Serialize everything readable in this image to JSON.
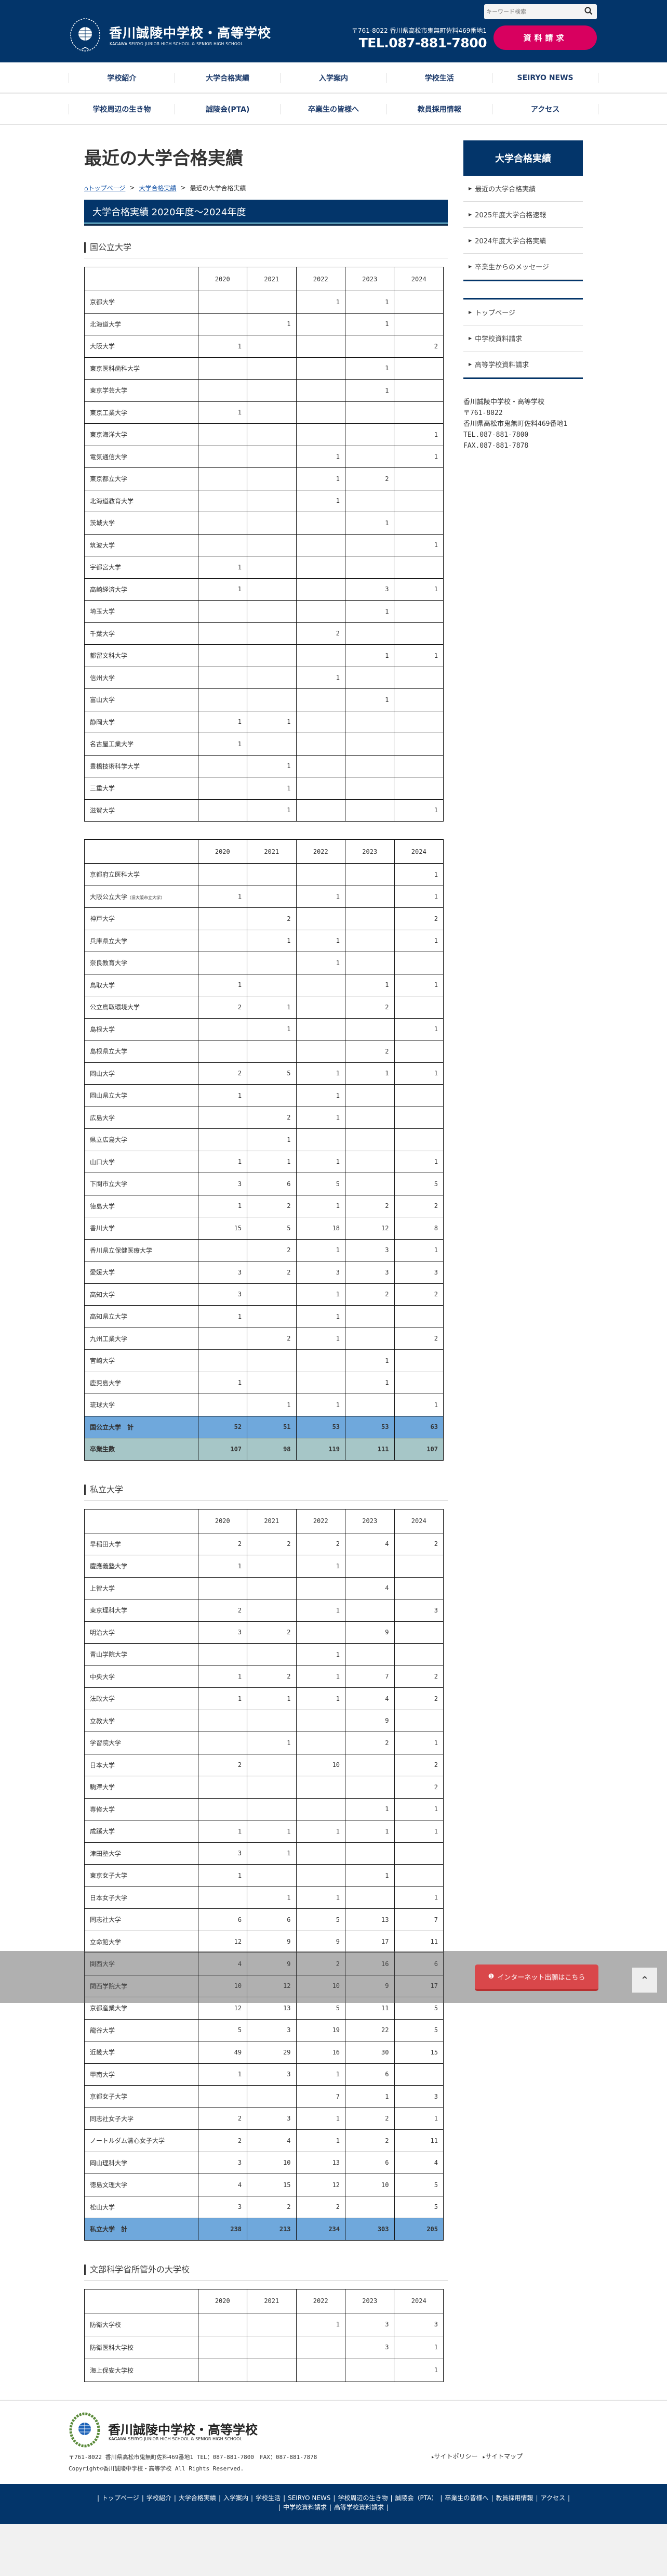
{
  "header": {
    "school_name": "香川誠陵中学校・高等学校",
    "school_name_en": "KAGAWA SEIRYO JUNIOR HIGH SCHOOL & SENIOR HIGH SCHOOL",
    "search_placeholder": "キーワード検索",
    "address": "〒761-8022 香川県高松市鬼無町佐料469番地1",
    "tel": "TEL.087-881-7800",
    "request_button": "資料請求"
  },
  "nav": {
    "row1": [
      "学校紹介",
      "大学合格実績",
      "入学案内",
      "学校生活",
      "SEIRYO NEWS"
    ],
    "row2": [
      "学校周辺の生き物",
      "誠陵会(PTA)",
      "卒業生の皆様へ",
      "教員採用情報",
      "アクセス"
    ]
  },
  "main": {
    "title": "最近の大学合格実績",
    "breadcrumb": {
      "home": "トップページ",
      "parent": "大学合格実績",
      "current": "最近の大学合格実績",
      "sep": ">"
    },
    "banner": "大学合格実績 2020年度〜2024年度",
    "sections": {
      "national": "国公立大学",
      "private": "私立大学",
      "other": "文部科学省所管外の大学校"
    }
  },
  "columns": [
    "2020",
    "2021",
    "2022",
    "2023",
    "2024"
  ],
  "tables": [
    {
      "rows": [
        [
          "京都大学",
          "",
          "",
          "1",
          "1",
          ""
        ],
        [
          "北海道大学",
          "",
          "1",
          "",
          "1",
          ""
        ],
        [
          "大阪大学",
          "1",
          "",
          "",
          "",
          "2"
        ],
        [
          "東京医科歯科大学",
          "",
          "",
          "",
          "1",
          ""
        ],
        [
          "東京学芸大学",
          "",
          "",
          "",
          "1",
          ""
        ],
        [
          "東京工業大学",
          "1",
          "",
          "",
          "",
          ""
        ],
        [
          "東京海洋大学",
          "",
          "",
          "",
          "",
          "1"
        ],
        [
          "電気通信大学",
          "",
          "",
          "1",
          "",
          "1"
        ],
        [
          "東京都立大学",
          "",
          "",
          "1",
          "2",
          ""
        ],
        [
          "北海道教育大学",
          "",
          "",
          "1",
          "",
          ""
        ],
        [
          "茨城大学",
          "",
          "",
          "",
          "1",
          ""
        ],
        [
          "筑波大学",
          "",
          "",
          "",
          "",
          "1"
        ],
        [
          "宇都宮大学",
          "1",
          "",
          "",
          "",
          ""
        ],
        [
          "高崎経済大学",
          "1",
          "",
          "",
          "3",
          "1"
        ],
        [
          "埼玉大学",
          "",
          "",
          "",
          "1",
          ""
        ],
        [
          "千葉大学",
          "",
          "",
          "2",
          "",
          ""
        ],
        [
          "都留文科大学",
          "",
          "",
          "",
          "1",
          "1"
        ],
        [
          "信州大学",
          "",
          "",
          "1",
          "",
          ""
        ],
        [
          "富山大学",
          "",
          "",
          "",
          "1",
          ""
        ],
        [
          "静岡大学",
          "1",
          "1",
          "",
          "",
          ""
        ],
        [
          "名古屋工業大学",
          "1",
          "",
          "",
          "",
          ""
        ],
        [
          "豊橋技術科学大学",
          "",
          "1",
          "",
          "",
          ""
        ],
        [
          "三重大学",
          "",
          "1",
          "",
          "",
          ""
        ],
        [
          "滋賀大学",
          "",
          "1",
          "",
          "",
          "1"
        ]
      ]
    },
    {
      "rows": [
        [
          "京都府立医科大学",
          "",
          "",
          "",
          "",
          "1"
        ],
        [
          "大阪公立大学|（旧大阪市立大学）",
          "1",
          "",
          "1",
          "",
          "1"
        ],
        [
          "神戸大学",
          "",
          "2",
          "",
          "",
          "2"
        ],
        [
          "兵庫県立大学",
          "",
          "1",
          "1",
          "",
          "1"
        ],
        [
          "奈良教育大学",
          "",
          "",
          "1",
          "",
          ""
        ],
        [
          "鳥取大学",
          "1",
          "",
          "",
          "1",
          "1"
        ],
        [
          "公立鳥取環境大学",
          "2",
          "1",
          "",
          "2",
          ""
        ],
        [
          "島根大学",
          "",
          "1",
          "",
          "",
          "1"
        ],
        [
          "島根県立大学",
          "",
          "",
          "",
          "2",
          ""
        ],
        [
          "岡山大学",
          "2",
          "5",
          "1",
          "1",
          "1"
        ],
        [
          "岡山県立大学",
          "1",
          "",
          "1",
          "",
          ""
        ],
        [
          "広島大学",
          "",
          "2",
          "1",
          "",
          ""
        ],
        [
          "県立広島大学",
          "",
          "1",
          "",
          "",
          ""
        ],
        [
          "山口大学",
          "1",
          "1",
          "1",
          "",
          "1"
        ],
        [
          "下関市立大学",
          "3",
          "6",
          "5",
          "",
          "5"
        ],
        [
          "徳島大学",
          "1",
          "2",
          "1",
          "2",
          "2"
        ],
        [
          "香川大学",
          "15",
          "5",
          "18",
          "12",
          "8"
        ],
        [
          "香川県立保健医療大学",
          "",
          "2",
          "1",
          "3",
          "1"
        ],
        [
          "愛媛大学",
          "3",
          "2",
          "3",
          "3",
          "3"
        ],
        [
          "高知大学",
          "3",
          "",
          "1",
          "2",
          "2"
        ],
        [
          "高知県立大学",
          "1",
          "",
          "1",
          "",
          ""
        ],
        [
          "九州工業大学",
          "",
          "2",
          "1",
          "",
          "2"
        ],
        [
          "宮崎大学",
          "",
          "",
          "",
          "1",
          ""
        ],
        [
          "鹿児島大学",
          "1",
          "",
          "",
          "1",
          ""
        ],
        [
          "琉球大学",
          "",
          "1",
          "1",
          "",
          "1"
        ]
      ],
      "total": [
        "国公立大学　計",
        "52",
        "51",
        "53",
        "53",
        "63"
      ],
      "graduates": [
        "卒業生数",
        "107",
        "98",
        "119",
        "111",
        "107"
      ]
    },
    {
      "rows": [
        [
          "早稲田大学",
          "2",
          "2",
          "2",
          "4",
          "2"
        ],
        [
          "慶應義塾大学",
          "1",
          "",
          "1",
          "",
          ""
        ],
        [
          "上智大学",
          "",
          "",
          "",
          "4",
          ""
        ],
        [
          "東京理科大学",
          "2",
          "",
          "1",
          "",
          "3"
        ],
        [
          "明治大学",
          "3",
          "2",
          "",
          "9",
          ""
        ],
        [
          "青山学院大学",
          "",
          "",
          "1",
          "",
          ""
        ],
        [
          "中央大学",
          "1",
          "2",
          "1",
          "7",
          "2"
        ],
        [
          "法政大学",
          "1",
          "1",
          "1",
          "4",
          "2"
        ],
        [
          "立教大学",
          "",
          "",
          "",
          "9",
          ""
        ],
        [
          "学習院大学",
          "",
          "1",
          "",
          "2",
          "1"
        ],
        [
          "日本大学",
          "2",
          "",
          "10",
          "",
          "2"
        ],
        [
          "駒澤大学",
          "",
          "",
          "",
          "",
          "2"
        ],
        [
          "専修大学",
          "",
          "",
          "",
          "1",
          "1"
        ],
        [
          "成蹊大学",
          "1",
          "1",
          "1",
          "1",
          "1"
        ],
        [
          "津田塾大学",
          "3",
          "1",
          "",
          "",
          ""
        ],
        [
          "東京女子大学",
          "1",
          "",
          "",
          "1",
          ""
        ],
        [
          "日本女子大学",
          "",
          "1",
          "1",
          "",
          "1"
        ],
        [
          "同志社大学",
          "6",
          "6",
          "5",
          "13",
          "7"
        ],
        [
          "立命館大学",
          "12",
          "9",
          "9",
          "17",
          "11"
        ],
        [
          "関西大学",
          "4",
          "9",
          "2",
          "16",
          "6"
        ],
        [
          "関西学院大学",
          "10",
          "12",
          "10",
          "9",
          "17"
        ],
        [
          "京都産業大学",
          "12",
          "13",
          "5",
          "11",
          "5"
        ],
        [
          "龍谷大学",
          "5",
          "3",
          "19",
          "22",
          "5"
        ],
        [
          "近畿大学",
          "49",
          "29",
          "16",
          "30",
          "15"
        ],
        [
          "甲南大学",
          "1",
          "3",
          "1",
          "6",
          ""
        ],
        [
          "京都女子大学",
          "",
          "",
          "7",
          "1",
          "3"
        ],
        [
          "同志社女子大学",
          "2",
          "3",
          "1",
          "2",
          "1"
        ],
        [
          "ノートルダム清心女子大学",
          "2",
          "4",
          "1",
          "2",
          "11"
        ],
        [
          "岡山理科大学",
          "3",
          "10",
          "13",
          "6",
          "4"
        ],
        [
          "徳島文理大学",
          "4",
          "15",
          "12",
          "10",
          "5"
        ],
        [
          "松山大学",
          "3",
          "2",
          "2",
          "",
          "5"
        ]
      ],
      "total": [
        "私立大学　計",
        "238",
        "213",
        "234",
        "303",
        "205"
      ]
    },
    {
      "rows": [
        [
          "防衛大学校",
          "",
          "",
          "1",
          "3",
          "3"
        ],
        [
          "防衛医科大学校",
          "",
          "",
          "",
          "3",
          "1"
        ],
        [
          "海上保安大学校",
          "",
          "",
          "",
          "",
          "1"
        ]
      ]
    }
  ],
  "sidebar": {
    "heading": "大学合格実績",
    "menu": [
      "最近の大学合格実績",
      "2025年度大学合格速報",
      "2024年度大学合格実績",
      "卒業生からのメッセージ"
    ],
    "links": [
      "トップページ",
      "中学校資料請求",
      "高等学校資料請求"
    ],
    "address": [
      "香川誠陵中学校・高等学校",
      "〒761-8022",
      "香川県高松市鬼無町佐料469番地1",
      "TEL.087-881-7800",
      "FAX.087-881-7878"
    ]
  },
  "floating": {
    "net_apply": "インターネット出願はこちら"
  },
  "footer": {
    "school_name": "香川誠陵中学校・高等学校",
    "school_name_en": "KAGAWA SEIRYO JUNIOR HIGH SCHOOL & SENIOR HIGH SCHOOL",
    "address": "〒761-8022 香川県高松市鬼無町佐料469番地1 TEL：087-881-7800　FAX：087-881-7878",
    "copyright": "Copyright©香川誠陵中学校・高等学校 All Rights Reserved.",
    "links": [
      "サイトポリシー",
      "サイトマップ"
    ],
    "nav_row1": [
      "トップページ",
      "学校紹介",
      "大学合格実績",
      "入学案内",
      "学校生活",
      "SEIRYO NEWS",
      "学校周辺の生き物",
      "誠陵会（PTA）",
      "卒業生の皆様へ",
      "教員採用情報",
      "アクセス"
    ],
    "nav_row2": [
      "中学校資料請求",
      "高等学校資料請求"
    ]
  },
  "colors": {
    "navy": "#03356a",
    "request_pink": "#d8005f",
    "total_row": "#6fa8dc",
    "graduates_row": "#a6c6c7",
    "net_apply_red": "#d9474a"
  }
}
